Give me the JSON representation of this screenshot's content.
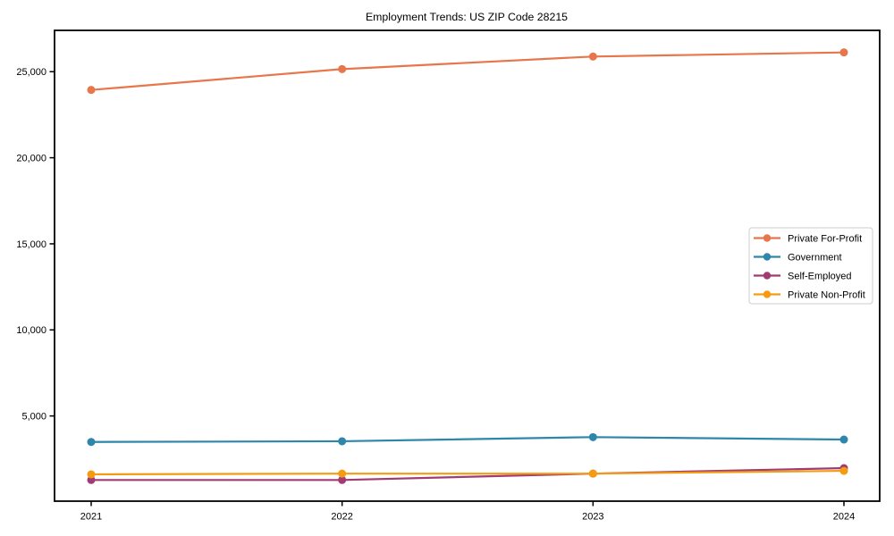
{
  "chart_data": {
    "type": "line",
    "title": "Employment Trends: US ZIP Code 28215",
    "categories": [
      "2021",
      "2022",
      "2023",
      "2024"
    ],
    "series": [
      {
        "name": "Private For-Profit",
        "color": "#E8764B",
        "values": [
          23940,
          25150,
          25880,
          26120
        ]
      },
      {
        "name": "Government",
        "color": "#2E86AB",
        "values": [
          3490,
          3530,
          3770,
          3630
        ]
      },
      {
        "name": "Self-Employed",
        "color": "#A23B72",
        "values": [
          1280,
          1280,
          1650,
          1970
        ]
      },
      {
        "name": "Private Non-Profit",
        "color": "#F39C12",
        "values": [
          1610,
          1650,
          1650,
          1810
        ]
      }
    ],
    "ylim": [
      50,
      27400
    ],
    "yticks": [
      5000,
      10000,
      15000,
      20000,
      25000
    ],
    "ytick_labels": [
      "5,000",
      "10,000",
      "15,000",
      "20,000",
      "25,000"
    ],
    "xlabel": "",
    "ylabel": "",
    "grid": false,
    "legend_position": "center right",
    "axis_color": "#000000",
    "legend_border_color": "#cccccc",
    "legend_background": "#ffffff"
  }
}
